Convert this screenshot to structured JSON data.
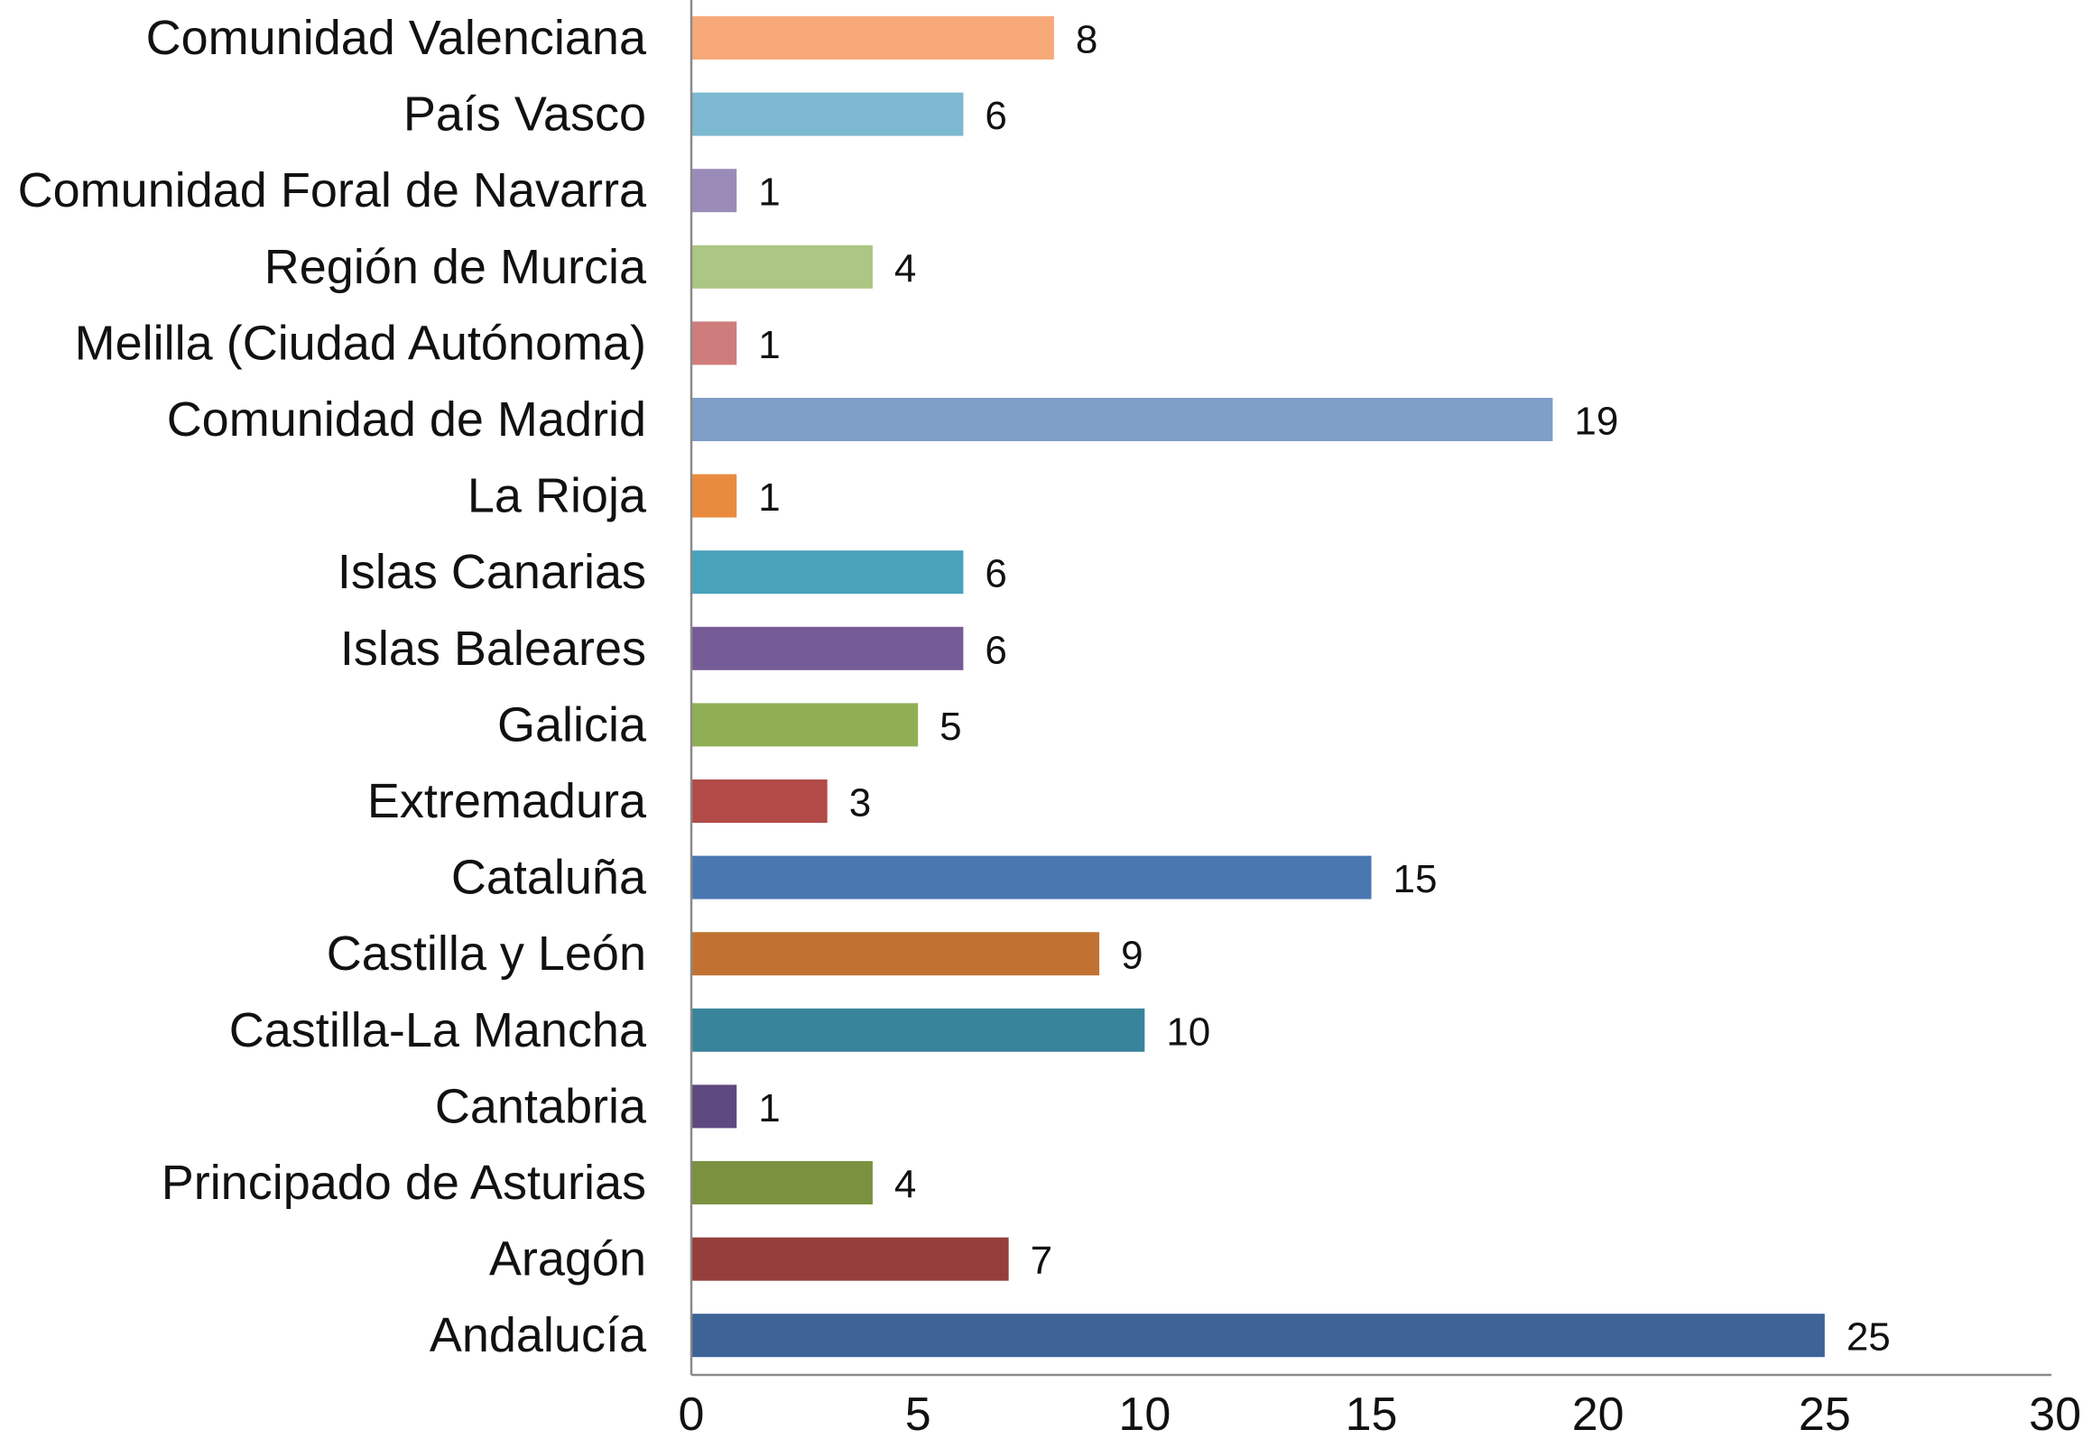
{
  "chart_data": {
    "type": "bar",
    "orientation": "horizontal",
    "categories": [
      "Comunidad Valenciana",
      "País Vasco",
      "Comunidad Foral de Navarra",
      "Región de Murcia",
      "Melilla (Ciudad Autónoma)",
      "Comunidad de Madrid",
      "La Rioja",
      "Islas Canarias",
      "Islas Baleares",
      "Galicia",
      "Extremadura",
      "Cataluña",
      "Castilla y León",
      "Castilla-La Mancha",
      "Cantabria",
      "Principado de Asturias",
      "Aragón",
      "Andalucía"
    ],
    "values": [
      8,
      6,
      1,
      4,
      1,
      19,
      1,
      6,
      6,
      5,
      3,
      15,
      9,
      10,
      1,
      4,
      7,
      25
    ],
    "value_labels": [
      "8",
      "6",
      "1",
      "4",
      "1",
      "19",
      "1",
      "6",
      "6",
      "5",
      "3",
      "15",
      "9",
      "10",
      "1",
      "4",
      "7",
      "25"
    ],
    "colors": [
      "#F8A97A",
      "#7DB9D0",
      "#9B8BB8",
      "#ACC684",
      "#CE7C7C",
      "#7F9EC8",
      "#E98B3F",
      "#48A3BA",
      "#755C96",
      "#90AF55",
      "#B24B47",
      "#4A77B0",
      "#C17232",
      "#38849A",
      "#5E4A80",
      "#7A9240",
      "#953D3B",
      "#3D6397"
    ],
    "xlim": [
      0,
      30
    ],
    "xticks": [
      0,
      5,
      10,
      15,
      20,
      25,
      30
    ],
    "xtick_labels": [
      "0",
      "5",
      "10",
      "15",
      "20",
      "25",
      "30"
    ],
    "grid": false,
    "legend": "none",
    "title": "",
    "xlabel": "",
    "ylabel": ""
  }
}
